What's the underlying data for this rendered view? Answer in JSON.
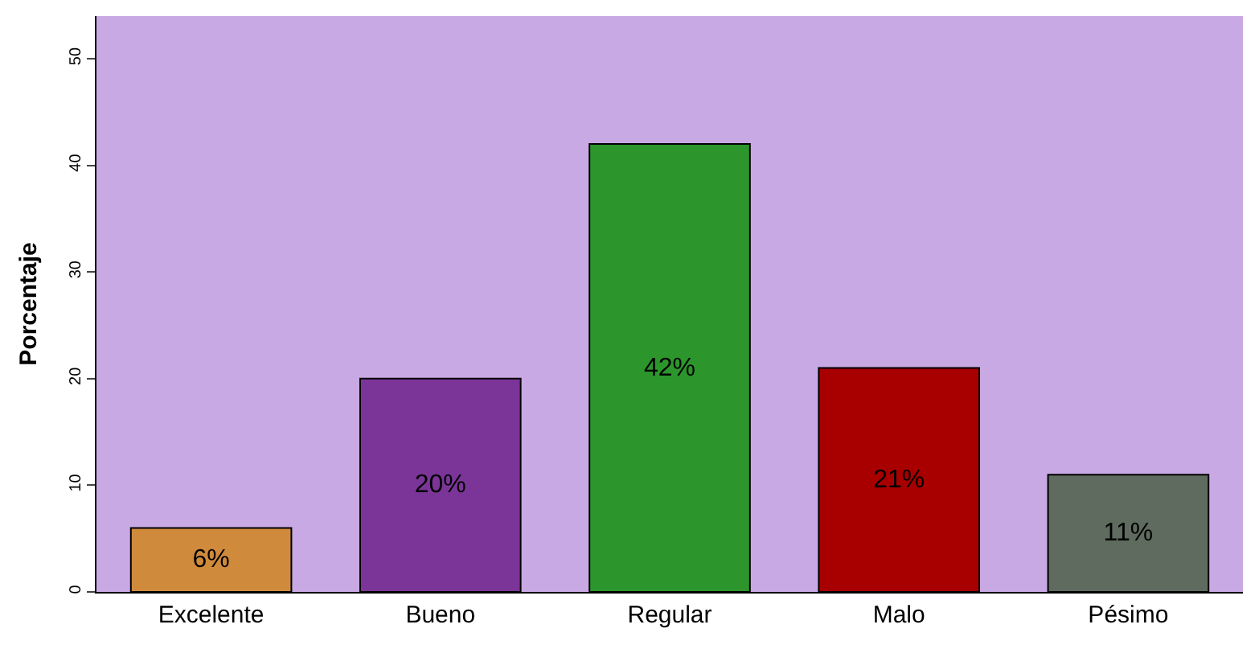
{
  "chart_data": {
    "type": "bar",
    "ylabel": "Porcentaje",
    "categories": [
      "Excelente",
      "Bueno",
      "Regular",
      "Malo",
      "Pésimo"
    ],
    "values": [
      6,
      20,
      42,
      21,
      11
    ],
    "colors": [
      "#d08a3c",
      "#7b3598",
      "#2c962c",
      "#a80000",
      "#5e6b5e"
    ],
    "value_labels": [
      "6%",
      "20%",
      "42%",
      "21%",
      "11%"
    ],
    "ylim": [
      0,
      54
    ],
    "yticks": [
      0,
      10,
      20,
      30,
      40,
      50
    ],
    "grid": false,
    "legend": false
  }
}
